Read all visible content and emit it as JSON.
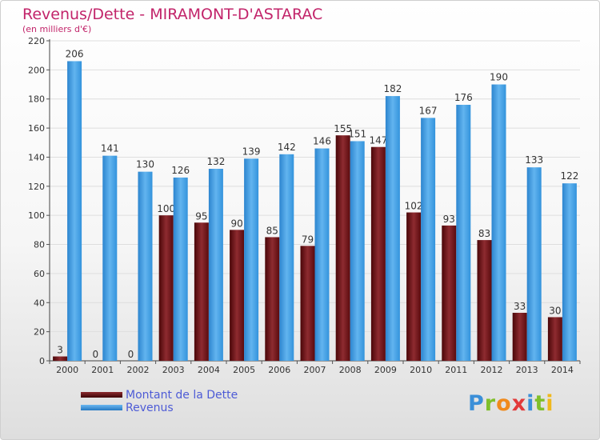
{
  "title": "Revenus/Dette - MIRAMONT-D'ASTARAC",
  "subtitle": "(en milliers d'€)",
  "brand": "Proxiti",
  "colors": {
    "dette": "#6e0f12",
    "revenus": "#3b9be2",
    "title": "#c2246a",
    "legend_text": "#4d5bd6"
  },
  "chart_data": {
    "type": "bar",
    "categories": [
      "2000",
      "2001",
      "2002",
      "2003",
      "2004",
      "2005",
      "2006",
      "2007",
      "2008",
      "2009",
      "2010",
      "2011",
      "2012",
      "2013",
      "2014"
    ],
    "series": [
      {
        "name": "Montant de la Dette",
        "values": [
          3,
          0,
          0,
          100,
          95,
          90,
          85,
          79,
          155,
          147,
          102,
          93,
          83,
          33,
          30
        ]
      },
      {
        "name": "Revenus",
        "values": [
          206,
          141,
          130,
          126,
          132,
          139,
          142,
          146,
          151,
          182,
          167,
          176,
          190,
          133,
          122
        ]
      }
    ],
    "ylim": [
      0,
      220
    ],
    "yticks": [
      0,
      20,
      40,
      60,
      80,
      100,
      120,
      140,
      160,
      180,
      200,
      220
    ],
    "grid": true,
    "legend_position": "bottom-left"
  }
}
